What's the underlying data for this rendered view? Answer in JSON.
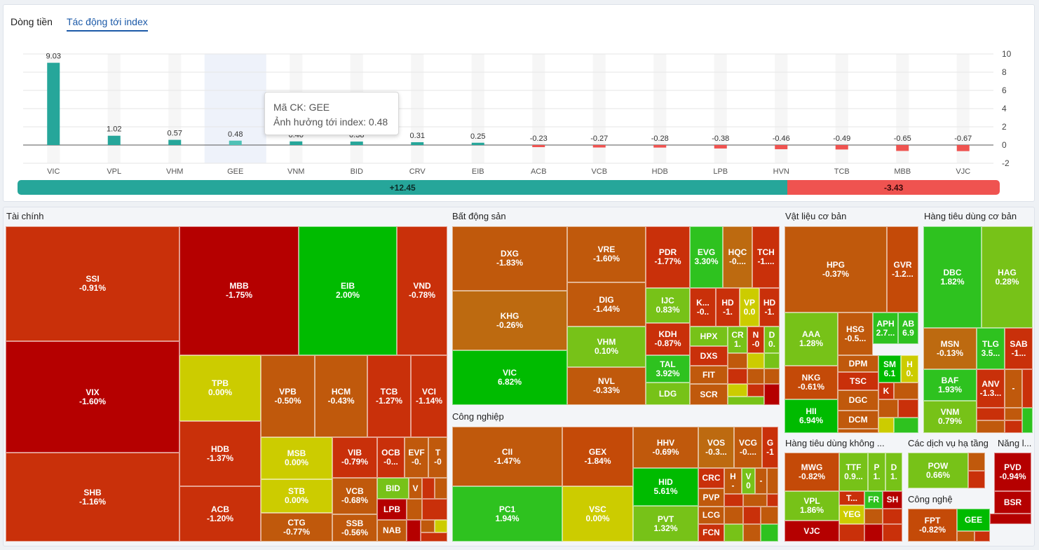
{
  "tabs": [
    {
      "label": "Dòng tiền",
      "active": false
    },
    {
      "label": "Tác động tới index",
      "active": true
    }
  ],
  "chart_data": {
    "type": "bar",
    "categories": [
      "VIC",
      "VPL",
      "VHM",
      "GEE",
      "VNM",
      "BID",
      "CRV",
      "EIB",
      "ACB",
      "VCB",
      "HDB",
      "LPB",
      "HVN",
      "TCB",
      "MBB",
      "VJC"
    ],
    "values": [
      9.03,
      1.02,
      0.57,
      0.48,
      0.4,
      0.38,
      0.31,
      0.25,
      -0.23,
      -0.27,
      -0.28,
      -0.38,
      -0.46,
      -0.49,
      -0.65,
      -0.67
    ],
    "value_labels": [
      "9.03",
      "1.02",
      "0.57",
      "0.48",
      "0.40",
      "0.38",
      "0.31",
      "0.25",
      "-0.23",
      "-0.27",
      "-0.28",
      "-0.38",
      "-0.46",
      "-0.49",
      "-0.65",
      "-0.67"
    ],
    "ylim": [
      -2,
      10
    ],
    "yticks": [
      "10",
      "8",
      "6",
      "4",
      "2",
      "0",
      "-2"
    ],
    "ytick_values": [
      10,
      8,
      6,
      4,
      2,
      0,
      -2
    ],
    "positive_color": "#26a69a",
    "negative_color": "#ef5350",
    "highlight_category": "GEE",
    "grid": true
  },
  "tooltip": {
    "line1": "Mã CK: GEE",
    "line2": "Ảnh hưởng tới index: 0.48"
  },
  "summary": {
    "positive": "+12.45",
    "negative": "-3.43",
    "positive_share": 0.784
  },
  "colors": {
    "deep_red": "#b50000",
    "red": "#c9300a",
    "red_orange": "#c44a08",
    "orange": "#c0590c",
    "brown_orange": "#bd6a10",
    "yellow": "#cccc00",
    "light_green": "#77c218",
    "green": "#2ec21f",
    "bright_green": "#00bb00"
  },
  "sectors": [
    {
      "name": "Tài chính"
    },
    {
      "name": "Bất động sản"
    },
    {
      "name": "Vật liệu cơ bản"
    },
    {
      "name": "Hàng tiêu dùng cơ bản"
    },
    {
      "name": "Công nghiệp"
    },
    {
      "name": "Hàng tiêu dùng không ..."
    },
    {
      "name": "Các dịch vụ hạ tầng"
    },
    {
      "name": "Năng l..."
    },
    {
      "name": "Công nghệ"
    }
  ],
  "tiles": [
    {
      "code": "SSI",
      "pct": "-0.91%"
    },
    {
      "code": "VIX",
      "pct": "-1.60%"
    },
    {
      "code": "SHB",
      "pct": "-1.16%"
    },
    {
      "code": "MBB",
      "pct": "-1.75%"
    },
    {
      "code": "EIB",
      "pct": "2.00%"
    },
    {
      "code": "VND",
      "pct": "-0.78%"
    },
    {
      "code": "TPB",
      "pct": "0.00%"
    },
    {
      "code": "VPB",
      "pct": "-0.50%"
    },
    {
      "code": "HCM",
      "pct": "-0.43%"
    },
    {
      "code": "TCB",
      "pct": "-1.27%"
    },
    {
      "code": "VCI",
      "pct": "-1.14%"
    },
    {
      "code": "HDB",
      "pct": "-1.37%"
    },
    {
      "code": "ACB",
      "pct": "-1.20%"
    },
    {
      "code": "MSB",
      "pct": "0.00%"
    },
    {
      "code": "STB",
      "pct": "0.00%"
    },
    {
      "code": "CTG",
      "pct": "-0.77%"
    },
    {
      "code": "VIB",
      "pct": "-0.79%"
    },
    {
      "code": "VCB",
      "pct": "-0.68%"
    },
    {
      "code": "SSB",
      "pct": "-0.56%"
    },
    {
      "code": "OCB",
      "pct": "-0..."
    },
    {
      "code": "EVF",
      "pct": "-0."
    },
    {
      "code": "T",
      "pct": "-0"
    },
    {
      "code": "BID",
      "pct": ""
    },
    {
      "code": "V",
      "pct": ""
    },
    {
      "code": "LPB",
      "pct": ""
    },
    {
      "code": "NAB",
      "pct": ""
    },
    {
      "code": "DXG",
      "pct": "-1.83%"
    },
    {
      "code": "KHG",
      "pct": "-0.26%"
    },
    {
      "code": "VIC",
      "pct": "6.82%"
    },
    {
      "code": "VRE",
      "pct": "-1.60%"
    },
    {
      "code": "DIG",
      "pct": "-1.44%"
    },
    {
      "code": "VHM",
      "pct": "0.10%"
    },
    {
      "code": "NVL",
      "pct": "-0.33%"
    },
    {
      "code": "PDR",
      "pct": "-1.77%"
    },
    {
      "code": "EVG",
      "pct": "3.30%"
    },
    {
      "code": "HQC",
      "pct": "-0...."
    },
    {
      "code": "TCH",
      "pct": "-1...."
    },
    {
      "code": "IJC",
      "pct": "0.83%"
    },
    {
      "code": "K...",
      "pct": "-0.."
    },
    {
      "code": "HD",
      "pct": "-1."
    },
    {
      "code": "VP",
      "pct": "0.0"
    },
    {
      "code": "HD",
      "pct": "-1."
    },
    {
      "code": "KDH",
      "pct": "-0.87%"
    },
    {
      "code": "HPX",
      "pct": ""
    },
    {
      "code": "CR",
      "pct": "1."
    },
    {
      "code": "N",
      "pct": "-0"
    },
    {
      "code": "D",
      "pct": "0."
    },
    {
      "code": "TAL",
      "pct": "3.92%"
    },
    {
      "code": "DXS",
      "pct": ""
    },
    {
      "code": "FIT",
      "pct": ""
    },
    {
      "code": "LDG",
      "pct": ""
    },
    {
      "code": "SCR",
      "pct": ""
    },
    {
      "code": "HPG",
      "pct": "-0.37%"
    },
    {
      "code": "GVR",
      "pct": "-1.2..."
    },
    {
      "code": "AAA",
      "pct": "1.28%"
    },
    {
      "code": "HSG",
      "pct": "-0.5..."
    },
    {
      "code": "APH",
      "pct": "2.7..."
    },
    {
      "code": "AB",
      "pct": "6.9"
    },
    {
      "code": "NKG",
      "pct": "-0.61%"
    },
    {
      "code": "DPM",
      "pct": ""
    },
    {
      "code": "SM",
      "pct": "6.1"
    },
    {
      "code": "H",
      "pct": "0."
    },
    {
      "code": "TSC",
      "pct": ""
    },
    {
      "code": "K",
      "pct": ""
    },
    {
      "code": "HII",
      "pct": "6.94%"
    },
    {
      "code": "DGC",
      "pct": ""
    },
    {
      "code": "DCM",
      "pct": ""
    },
    {
      "code": "DBC",
      "pct": "1.82%"
    },
    {
      "code": "HAG",
      "pct": "0.28%"
    },
    {
      "code": "MSN",
      "pct": "-0.13%"
    },
    {
      "code": "TLG",
      "pct": "3.5..."
    },
    {
      "code": "SAB",
      "pct": "-1..."
    },
    {
      "code": "BAF",
      "pct": "1.93%"
    },
    {
      "code": "ANV",
      "pct": "-1.3..."
    },
    {
      "code": "-",
      "pct": ""
    },
    {
      "code": "VNM",
      "pct": "0.79%"
    },
    {
      "code": "CII",
      "pct": "-1.47%"
    },
    {
      "code": "GEX",
      "pct": "-1.84%"
    },
    {
      "code": "HHV",
      "pct": "-0.69%"
    },
    {
      "code": "VOS",
      "pct": "-0.3..."
    },
    {
      "code": "VCG",
      "pct": "-0...."
    },
    {
      "code": "G",
      "pct": "-1"
    },
    {
      "code": "CRC",
      "pct": ""
    },
    {
      "code": "H",
      "pct": "-"
    },
    {
      "code": "V",
      "pct": "0"
    },
    {
      "code": "-",
      "pct": ""
    },
    {
      "code": "HID",
      "pct": "5.61%"
    },
    {
      "code": "PVP",
      "pct": ""
    },
    {
      "code": "PC1",
      "pct": "1.94%"
    },
    {
      "code": "VSC",
      "pct": "0.00%"
    },
    {
      "code": "PVT",
      "pct": "1.32%"
    },
    {
      "code": "LCG",
      "pct": ""
    },
    {
      "code": "FCN",
      "pct": ""
    },
    {
      "code": "MWG",
      "pct": "-0.82%"
    },
    {
      "code": "TTF",
      "pct": "0.9..."
    },
    {
      "code": "P",
      "pct": "1."
    },
    {
      "code": "D",
      "pct": "1."
    },
    {
      "code": "VPL",
      "pct": "1.86%"
    },
    {
      "code": "T...",
      "pct": ""
    },
    {
      "code": "FR",
      "pct": ""
    },
    {
      "code": "SH",
      "pct": ""
    },
    {
      "code": "YEG",
      "pct": ""
    },
    {
      "code": "VJC",
      "pct": ""
    },
    {
      "code": "POW",
      "pct": "0.66%"
    },
    {
      "code": "PVD",
      "pct": "-0.94%"
    },
    {
      "code": "BSR",
      "pct": ""
    },
    {
      "code": "FPT",
      "pct": "-0.82%"
    },
    {
      "code": "GEE",
      "pct": ""
    }
  ]
}
